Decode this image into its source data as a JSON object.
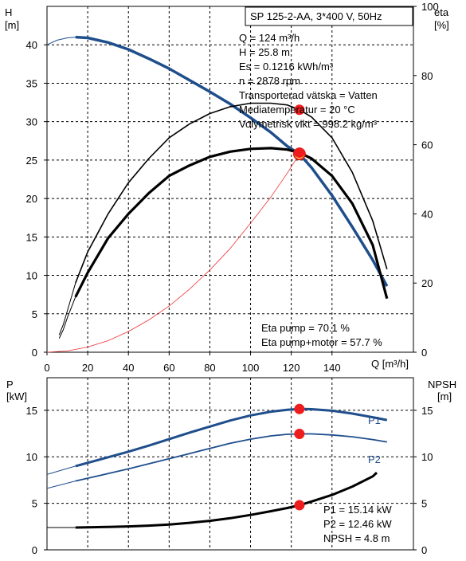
{
  "chart_data": [
    {
      "type": "line",
      "title": "SP 125-2-AA, 3*400 V, 50Hz",
      "left_axis_label": [
        "H",
        "[m]"
      ],
      "right_axis_label": [
        "eta",
        "[%]"
      ],
      "xlabel": "Q [m³/h]",
      "xlim": [
        0,
        180
      ],
      "ylim_left": [
        0,
        45
      ],
      "ylim_right": [
        0,
        100
      ],
      "x_ticks": [
        0,
        20,
        40,
        60,
        80,
        100,
        120,
        140
      ],
      "left_ticks": [
        0,
        5,
        10,
        15,
        20,
        25,
        30,
        35,
        40
      ],
      "right_ticks": [
        0,
        20,
        40,
        60,
        80,
        100
      ],
      "info_lines": [
        "Q = 124 m³/h",
        "H = 25.8 m",
        "Es = 0.1216 kWh/m³",
        "n = 2878 rpm",
        "Transporterad vätska = Vatten",
        "Mediatemperatur = 20 °C",
        "Volymetrisk vikt = 998.2 kg/m³"
      ],
      "eta_lines": [
        "Eta pump = 70.1 %",
        "Eta pump+motor = 57.7 %"
      ],
      "series": [
        {
          "key": "H",
          "axis": "left",
          "color": "#1f4e8c",
          "x": [
            0,
            5,
            10,
            14,
            20,
            30,
            40,
            50,
            60,
            70,
            80,
            90,
            100,
            110,
            118,
            124,
            130,
            140,
            150,
            160,
            167
          ],
          "y": [
            40.0,
            40.6,
            40.9,
            41.0,
            40.9,
            40.3,
            39.4,
            38.2,
            36.9,
            35.4,
            33.9,
            32.3,
            30.5,
            28.6,
            26.8,
            25.8,
            24.0,
            20.4,
            16.3,
            12.0,
            8.6
          ]
        },
        {
          "key": "system",
          "axis": "left",
          "color": "#ee3333",
          "x": [
            0,
            10,
            20,
            30,
            40,
            50,
            60,
            70,
            80,
            90,
            100,
            110,
            118,
            124
          ],
          "y": [
            0,
            0.17,
            0.67,
            1.5,
            2.7,
            4.2,
            6.0,
            8.2,
            10.7,
            13.5,
            16.8,
            20.2,
            23.3,
            25.8
          ]
        },
        {
          "key": "eta_pump",
          "axis": "right",
          "x": [
            6,
            8,
            10,
            12,
            14,
            20,
            30,
            40,
            50,
            60,
            70,
            80,
            90,
            100,
            110,
            118,
            124,
            130,
            140,
            150,
            160,
            167
          ],
          "y": [
            5,
            8,
            12,
            16,
            20,
            29,
            40,
            49,
            56,
            62,
            66,
            69,
            71,
            72,
            72,
            71.5,
            70.1,
            68,
            62,
            52,
            38,
            24
          ]
        },
        {
          "key": "eta_pump_motor",
          "axis": "right",
          "x": [
            6,
            8,
            10,
            12,
            14,
            20,
            30,
            40,
            50,
            60,
            70,
            80,
            90,
            100,
            110,
            118,
            124,
            130,
            140,
            150,
            160,
            167
          ],
          "y": [
            4,
            6.5,
            10,
            13,
            16,
            23,
            33,
            40,
            46,
            51,
            54,
            56.5,
            58,
            58.8,
            59,
            58.6,
            57.7,
            56,
            51,
            43,
            31,
            15.5
          ]
        }
      ],
      "markers": [
        {
          "axis": "left",
          "x": 124,
          "y": 25.8,
          "kind": "duty"
        },
        {
          "axis": "right",
          "x": 124,
          "y": 70.1,
          "kind": "dot"
        },
        {
          "axis": "right",
          "x": 124,
          "y": 57.7,
          "kind": "dot"
        }
      ]
    },
    {
      "type": "line",
      "left_axis_label": [
        "P",
        "[kW]"
      ],
      "right_axis_label": [
        "NPSH",
        "[m]"
      ],
      "xlim": [
        0,
        180
      ],
      "ylim_left": [
        0,
        18.5
      ],
      "ylim_right": [
        0,
        18.5
      ],
      "left_ticks": [
        0,
        5,
        10,
        15
      ],
      "right_ticks": [
        0,
        5,
        10,
        15
      ],
      "info_lines": [
        "P1 = 15.14 kW",
        "P2 = 12.46 kW",
        "NPSH = 4.8 m"
      ],
      "series": [
        {
          "key": "P1",
          "name": "P1",
          "axis": "left",
          "color": "#1f4e8c",
          "x": [
            0,
            14,
            20,
            30,
            40,
            50,
            60,
            70,
            80,
            90,
            100,
            110,
            118,
            124,
            130,
            140,
            150,
            160,
            167
          ],
          "y": [
            8.1,
            9.0,
            9.35,
            9.95,
            10.55,
            11.2,
            11.9,
            12.6,
            13.25,
            13.9,
            14.45,
            14.85,
            15.05,
            15.14,
            15.12,
            14.95,
            14.65,
            14.25,
            13.95
          ]
        },
        {
          "key": "P2",
          "name": "P2",
          "axis": "left",
          "color": "#1f4e8c",
          "x": [
            0,
            14,
            20,
            30,
            40,
            50,
            60,
            70,
            80,
            90,
            100,
            110,
            118,
            124,
            130,
            140,
            150,
            160,
            167
          ],
          "y": [
            6.6,
            7.4,
            7.7,
            8.2,
            8.7,
            9.25,
            9.8,
            10.35,
            10.9,
            11.45,
            11.9,
            12.25,
            12.42,
            12.46,
            12.46,
            12.35,
            12.15,
            11.85,
            11.6
          ]
        },
        {
          "key": "NPSH",
          "axis": "right",
          "color": "#000000",
          "x": [
            0,
            14,
            20,
            30,
            40,
            50,
            60,
            70,
            80,
            90,
            100,
            110,
            118,
            124,
            130,
            140,
            150,
            160,
            162
          ],
          "y": [
            2.4,
            2.4,
            2.42,
            2.46,
            2.52,
            2.6,
            2.72,
            2.9,
            3.12,
            3.4,
            3.75,
            4.15,
            4.5,
            4.8,
            5.2,
            5.9,
            6.8,
            7.9,
            8.3
          ]
        }
      ],
      "markers": [
        {
          "axis": "left",
          "x": 124,
          "y": 15.14,
          "kind": "dot"
        },
        {
          "axis": "left",
          "x": 124,
          "y": 12.46,
          "kind": "dot"
        },
        {
          "axis": "right",
          "x": 124,
          "y": 4.8,
          "kind": "dot"
        }
      ]
    }
  ]
}
